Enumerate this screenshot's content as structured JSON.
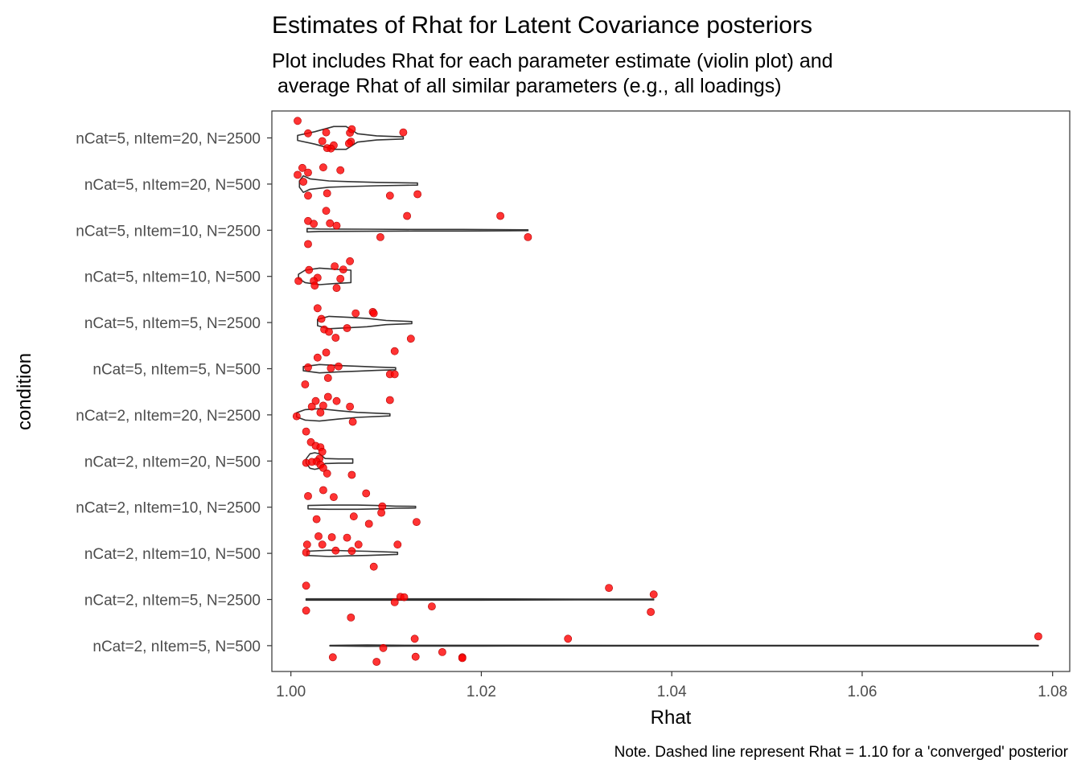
{
  "chart_data": {
    "type": "violin+jitter",
    "title": "Estimates of Rhat for Latent Covariance posteriors",
    "subtitle_lines": [
      "Plot includes Rhat for each parameter estimate (violin plot) and",
      " average Rhat of all similar parameters (e.g., all loadings)"
    ],
    "xlabel": "Rhat",
    "ylabel": "condition",
    "caption": "Note. Dashed line represent Rhat = 1.10 for a 'converged' posterior",
    "xlim": [
      0.998,
      1.0818
    ],
    "x_ticks": [
      1.0,
      1.02,
      1.04,
      1.06,
      1.08
    ],
    "x_tick_labels": [
      "1.00",
      "1.02",
      "1.04",
      "1.06",
      "1.08"
    ],
    "grid": false,
    "colors": {
      "points": "#ff0000",
      "violin": "#333333",
      "panel_border": "#333333"
    },
    "categories": [
      "nCat=5, nItem=20, N=2500",
      "nCat=5, nItem=20, N=500",
      "nCat=5, nItem=10, N=2500",
      "nCat=5, nItem=10, N=500",
      "nCat=5, nItem=5, N=2500",
      "nCat=5, nItem=5, N=500",
      "nCat=2, nItem=20, N=2500",
      "nCat=2, nItem=20, N=500",
      "nCat=2, nItem=10, N=2500",
      "nCat=2, nItem=10, N=500",
      "nCat=2, nItem=5, N=2500",
      "nCat=2, nItem=5, N=500"
    ],
    "groups": [
      {
        "condition": "nCat=5, nItem=20, N=2500",
        "violin": {
          "min": 1.0007,
          "max": 1.0118,
          "profile": [
            [
              1.0007,
              0.12
            ],
            [
              1.0025,
              0.3
            ],
            [
              1.0045,
              0.55
            ],
            [
              1.0058,
              0.55
            ],
            [
              1.007,
              0.2
            ],
            [
              1.009,
              0.1
            ],
            [
              1.0118,
              0.05
            ]
          ]
        },
        "points": [
          [
            1.0007,
            0.37
          ],
          [
            1.0018,
            0.1
          ],
          [
            1.0037,
            0.12
          ],
          [
            1.0062,
            0.11
          ],
          [
            1.0063,
            -0.08
          ],
          [
            1.0064,
            0.19
          ],
          [
            1.0118,
            0.12
          ],
          [
            1.0033,
            -0.07
          ],
          [
            1.0061,
            -0.12
          ],
          [
            1.0045,
            -0.16
          ],
          [
            1.0042,
            -0.23
          ],
          [
            1.0038,
            -0.22
          ]
        ]
      },
      {
        "condition": "nCat=5, nItem=20, N=500",
        "violin": {
          "min": 1.0009,
          "max": 1.0133,
          "profile": [
            [
              1.0009,
              0.15
            ],
            [
              1.0013,
              0.4
            ],
            [
              1.002,
              0.25
            ],
            [
              1.004,
              0.15
            ],
            [
              1.006,
              0.12
            ],
            [
              1.009,
              0.08
            ],
            [
              1.0133,
              0.05
            ]
          ]
        },
        "points": [
          [
            1.0012,
            0.35
          ],
          [
            1.0007,
            0.2
          ],
          [
            1.0018,
            0.25
          ],
          [
            1.0034,
            0.36
          ],
          [
            1.0052,
            0.3
          ],
          [
            1.0013,
            0.05
          ],
          [
            1.0038,
            -0.2
          ],
          [
            1.0018,
            -0.25
          ],
          [
            1.0104,
            -0.25
          ],
          [
            1.0133,
            -0.22
          ]
        ]
      },
      {
        "condition": "nCat=5, nItem=10, N=2500",
        "violin": {
          "min": 1.0017,
          "max": 1.0249,
          "profile": [
            [
              1.0017,
              0.08
            ],
            [
              1.003,
              0.06
            ],
            [
              1.008,
              0.05
            ],
            [
              1.013,
              0.04
            ],
            [
              1.018,
              0.04
            ],
            [
              1.0249,
              0.02
            ]
          ]
        },
        "points": [
          [
            1.0037,
            0.42
          ],
          [
            1.0018,
            0.2
          ],
          [
            1.0024,
            0.14
          ],
          [
            1.0041,
            0.15
          ],
          [
            1.0048,
            0.1
          ],
          [
            1.0122,
            0.31
          ],
          [
            1.022,
            0.31
          ],
          [
            1.0249,
            -0.15
          ],
          [
            1.0094,
            -0.15
          ],
          [
            1.0018,
            -0.3
          ]
        ]
      },
      {
        "condition": "nCat=5, nItem=10, N=500",
        "violin": {
          "min": 1.0008,
          "max": 1.0063,
          "profile": [
            [
              1.0008,
              0.1
            ],
            [
              1.0015,
              0.3
            ],
            [
              1.003,
              0.4
            ],
            [
              1.0045,
              0.35
            ],
            [
              1.0063,
              0.3
            ]
          ]
        },
        "points": [
          [
            1.0062,
            0.33
          ],
          [
            1.0046,
            0.22
          ],
          [
            1.0019,
            0.14
          ],
          [
            1.0055,
            0.15
          ],
          [
            1.0028,
            -0.03
          ],
          [
            1.0052,
            -0.05
          ],
          [
            1.0008,
            -0.1
          ],
          [
            1.0024,
            -0.1
          ],
          [
            1.0025,
            -0.2
          ],
          [
            1.0048,
            -0.25
          ]
        ]
      },
      {
        "condition": "nCat=5, nItem=5, N=2500",
        "violin": {
          "min": 1.0028,
          "max": 1.0127,
          "profile": [
            [
              1.0028,
              0.15
            ],
            [
              1.004,
              0.3
            ],
            [
              1.006,
              0.25
            ],
            [
              1.008,
              0.2
            ],
            [
              1.01,
              0.1
            ],
            [
              1.0127,
              0.05
            ]
          ]
        },
        "points": [
          [
            1.0028,
            0.31
          ],
          [
            1.0068,
            0.2
          ],
          [
            1.0086,
            0.23
          ],
          [
            1.0087,
            0.2
          ],
          [
            1.0032,
            0.08
          ],
          [
            1.0035,
            -0.15
          ],
          [
            1.004,
            -0.2
          ],
          [
            1.0047,
            -0.33
          ],
          [
            1.0059,
            -0.12
          ],
          [
            1.0126,
            -0.35
          ]
        ]
      },
      {
        "condition": "nCat=5, nItem=5, N=500",
        "violin": {
          "min": 1.0013,
          "max": 1.011,
          "profile": [
            [
              1.0013,
              0.1
            ],
            [
              1.003,
              0.2
            ],
            [
              1.005,
              0.15
            ],
            [
              1.007,
              0.12
            ],
            [
              1.009,
              0.08
            ],
            [
              1.011,
              0.05
            ]
          ]
        },
        "points": [
          [
            1.0037,
            0.35
          ],
          [
            1.0028,
            0.24
          ],
          [
            1.0109,
            0.38
          ],
          [
            1.005,
            0.05
          ],
          [
            1.0042,
            0.01
          ],
          [
            1.0018,
            0.03
          ],
          [
            1.0104,
            -0.12
          ],
          [
            1.0109,
            -0.12
          ],
          [
            1.0039,
            -0.2
          ],
          [
            1.0015,
            -0.34
          ]
        ]
      },
      {
        "condition": "nCat=2, nItem=20, N=2500",
        "violin": {
          "min": 1.0006,
          "max": 1.0104,
          "profile": [
            [
              1.0006,
              0.1
            ],
            [
              1.0015,
              0.25
            ],
            [
              1.003,
              0.3
            ],
            [
              1.005,
              0.2
            ],
            [
              1.007,
              0.12
            ],
            [
              1.0104,
              0.05
            ]
          ]
        },
        "points": [
          [
            1.0039,
            0.39
          ],
          [
            1.0048,
            0.3
          ],
          [
            1.0104,
            0.32
          ],
          [
            1.0026,
            0.3
          ],
          [
            1.0034,
            0.2
          ],
          [
            1.0022,
            0.18
          ],
          [
            1.0062,
            0.18
          ],
          [
            1.0031,
            0.05
          ],
          [
            1.0006,
            -0.03
          ],
          [
            1.0065,
            -0.15
          ],
          [
            1.0016,
            -0.36
          ]
        ]
      },
      {
        "condition": "nCat=2, nItem=20, N=500",
        "violin": {
          "min": 1.0016,
          "max": 1.0065,
          "profile": [
            [
              1.0016,
              0.1
            ],
            [
              1.002,
              0.35
            ],
            [
              1.0025,
              0.4
            ],
            [
              1.003,
              0.35
            ],
            [
              1.0036,
              0.12
            ],
            [
              1.005,
              0.1
            ],
            [
              1.0065,
              0.1
            ]
          ]
        },
        "points": [
          [
            1.0021,
            0.41
          ],
          [
            1.0026,
            0.33
          ],
          [
            1.0031,
            0.3
          ],
          [
            1.0033,
            0.2
          ],
          [
            1.003,
            0.05
          ],
          [
            1.0027,
            -0.01
          ],
          [
            1.0022,
            -0.02
          ],
          [
            1.0016,
            -0.04
          ],
          [
            1.0031,
            -0.08
          ],
          [
            1.0034,
            -0.15
          ],
          [
            1.0038,
            -0.27
          ],
          [
            1.0064,
            -0.3
          ]
        ]
      },
      {
        "condition": "nCat=2, nItem=10, N=2500",
        "violin": {
          "min": 1.0018,
          "max": 1.0131,
          "profile": [
            [
              1.0018,
              0.08
            ],
            [
              1.004,
              0.1
            ],
            [
              1.007,
              0.1
            ],
            [
              1.009,
              0.08
            ],
            [
              1.011,
              0.05
            ],
            [
              1.0131,
              0.04
            ]
          ]
        },
        "points": [
          [
            1.0034,
            0.37
          ],
          [
            1.0079,
            0.3
          ],
          [
            1.0018,
            0.24
          ],
          [
            1.0045,
            0.22
          ],
          [
            1.0096,
            0.02
          ],
          [
            1.0095,
            -0.12
          ],
          [
            1.0066,
            -0.2
          ],
          [
            1.0027,
            -0.26
          ],
          [
            1.0082,
            -0.36
          ],
          [
            1.0132,
            -0.32
          ]
        ]
      },
      {
        "condition": "nCat=2, nItem=10, N=500",
        "violin": {
          "min": 1.0017,
          "max": 1.0112,
          "profile": [
            [
              1.0017,
              0.1
            ],
            [
              1.004,
              0.15
            ],
            [
              1.006,
              0.12
            ],
            [
              1.008,
              0.1
            ],
            [
              1.0112,
              0.05
            ]
          ]
        },
        "points": [
          [
            1.0029,
            0.37
          ],
          [
            1.0043,
            0.35
          ],
          [
            1.0059,
            0.34
          ],
          [
            1.0017,
            0.19
          ],
          [
            1.0033,
            0.19
          ],
          [
            1.0071,
            0.19
          ],
          [
            1.0112,
            0.19
          ],
          [
            1.0047,
            0.06
          ],
          [
            1.0064,
            0.05
          ],
          [
            1.0016,
            0.02
          ],
          [
            1.0087,
            -0.29
          ]
        ]
      },
      {
        "condition": "nCat=2, nItem=5, N=2500",
        "violin": {
          "min": 1.0016,
          "max": 1.0381,
          "profile": [
            [
              1.0016,
              0.03
            ],
            [
              1.01,
              0.03
            ],
            [
              1.02,
              0.03
            ],
            [
              1.03,
              0.02
            ],
            [
              1.0381,
              0.02
            ]
          ]
        },
        "points": [
          [
            1.0016,
            0.3
          ],
          [
            1.0334,
            0.25
          ],
          [
            1.0381,
            0.11
          ],
          [
            1.0115,
            0.06
          ],
          [
            1.0119,
            0.05
          ],
          [
            1.0109,
            -0.06
          ],
          [
            1.0148,
            -0.15
          ],
          [
            1.0016,
            -0.24
          ],
          [
            1.0063,
            -0.39
          ],
          [
            1.0378,
            -0.27
          ]
        ]
      },
      {
        "condition": "nCat=2, nItem=5, N=500",
        "violin": {
          "min": 1.0041,
          "max": 1.0785,
          "profile": [
            [
              1.0041,
              0.01
            ],
            [
              1.008,
              0.03
            ],
            [
              1.012,
              0.02
            ],
            [
              1.02,
              0.02
            ],
            [
              1.05,
              0.01
            ],
            [
              1.0785,
              0.01
            ]
          ]
        },
        "points": [
          [
            1.0785,
            0.2
          ],
          [
            1.0291,
            0.15
          ],
          [
            1.013,
            0.15
          ],
          [
            1.0097,
            -0.05
          ],
          [
            1.0159,
            -0.14
          ],
          [
            1.018,
            -0.25
          ],
          [
            1.018,
            -0.27
          ],
          [
            1.0131,
            -0.24
          ],
          [
            1.0044,
            -0.25
          ],
          [
            1.009,
            -0.35
          ]
        ]
      }
    ]
  }
}
